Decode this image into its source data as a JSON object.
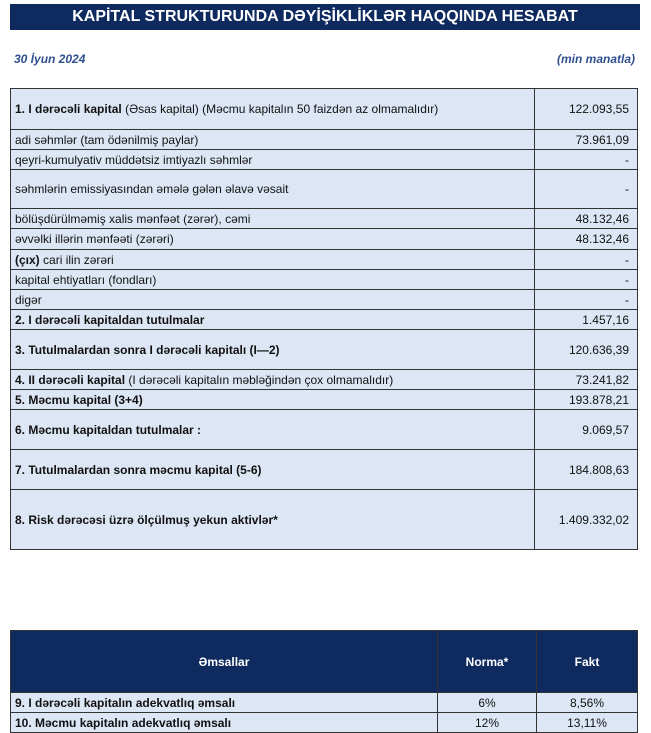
{
  "title": "KAPİTAL STRUKTURUNDA DƏYİŞİKLİKLƏR HAQQINDA HESABAT",
  "date": "30 İyun 2024",
  "unit": "(min manatla)",
  "rows": [
    {
      "bold": "1. I dərəcəli kapital",
      "text": " (Əsas kapital) (Məcmu kapitalın 50 faizdən  az olmamalıdır)",
      "value": "122.093,55"
    },
    {
      "bold": "",
      "text": "adi səhmlər (tam ödənilmiş paylar)",
      "value": "73.961,09"
    },
    {
      "bold": "",
      "text": "qeyri-kumulyativ müddətsiz imtiyazlı səhmlər",
      "value": "-"
    },
    {
      "bold": "",
      "text": "səhmlərin emissiyasından əmələ gələn  əlavə vəsait",
      "value": "-"
    },
    {
      "bold": "",
      "text": "bölüşdürülməmiş xalis mənfəət (zərər), cəmi",
      "value": "48.132,46"
    },
    {
      "bold": "",
      "text": "əvvəlki illərin mənfəəti (zərəri)",
      "value": "48.132,46"
    },
    {
      "bold": "(çıx)",
      "text": " cari ilin zərəri",
      "value": "-"
    },
    {
      "bold": "",
      "text": "kapital ehtiyatları (fondları)",
      "value": "-"
    },
    {
      "bold": "",
      "text": "digər",
      "value": "-"
    },
    {
      "bold": "2. I dərəcəli kapitaldan  tutulmalar",
      "text": "",
      "value": "1.457,16"
    },
    {
      "bold": "3. Tutulmalardan  sonra I dərəcəli kapitalı (I—2)",
      "text": "",
      "value": "120.636,39"
    },
    {
      "bold": "4. II dərəcəli kapital",
      "text": " (I dərəcəli  kapitalın  məbləğindən çox olmamalıdır)",
      "value": "73.241,82"
    },
    {
      "bold": "5. Məcmu kapital (3+4)",
      "text": "",
      "value": "193.878,21"
    },
    {
      "bold": "6. Məcmu kapitaldan tutulmalar :",
      "text": "",
      "value": "9.069,57"
    },
    {
      "bold": "7. Tutulmalardan  sonra məcmu kapital (5-6)",
      "text": "",
      "value": "184.808,63"
    },
    {
      "bold": "8. Risk dərəcəsi üzrə ölçülmuş  yekun aktivlər*",
      "text": "",
      "value": "1.409.332,02"
    }
  ],
  "ratios": {
    "headers": [
      "Əmsallar",
      "Norma*",
      "Fakt"
    ],
    "rows": [
      {
        "label": "9.  I dərəcəli  kapitalın  adekvatlıq əmsalı",
        "norma": "6%",
        "fakt": "8,56%"
      },
      {
        "label": "10. Məcmu kapitalın adekvatlıq əmsalı",
        "norma": "12%",
        "fakt": "13,11%"
      }
    ]
  }
}
